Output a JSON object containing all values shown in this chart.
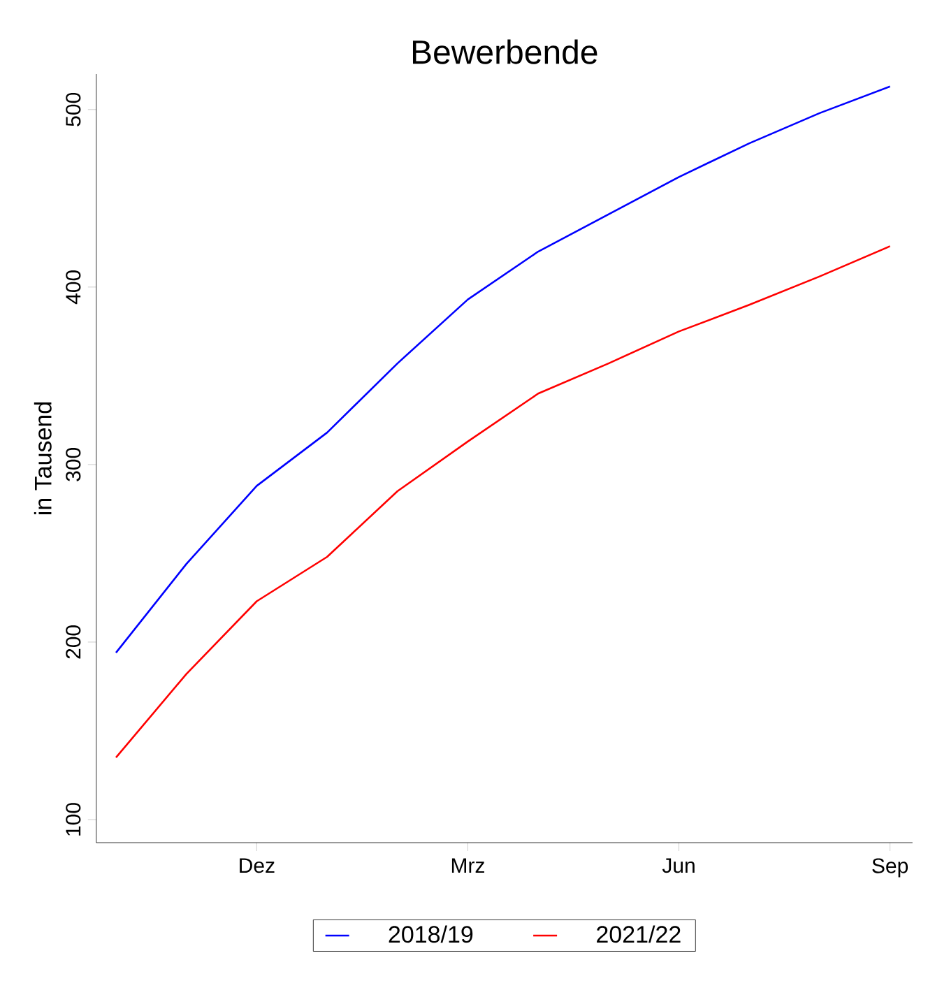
{
  "chart_data": {
    "type": "line",
    "title": "Bewerbende",
    "ylabel": "in Tausend",
    "categories": [
      null,
      null,
      "Dez",
      null,
      null,
      "Mrz",
      null,
      null,
      "Jun",
      null,
      null,
      "Sep"
    ],
    "series": [
      {
        "name": "2018/19",
        "color": "#0000ff",
        "values": [
          194,
          244,
          288,
          318,
          357,
          393,
          420,
          441,
          462,
          481,
          498,
          513
        ]
      },
      {
        "name": "2021/22",
        "color": "#ff0000",
        "values": [
          135,
          182,
          223,
          248,
          285,
          313,
          340,
          357,
          375,
          390,
          406,
          423
        ]
      }
    ],
    "ylim": [
      87,
      520
    ],
    "yticks": [
      100,
      200,
      300,
      400,
      500
    ],
    "grid": false,
    "legend": "bottom",
    "marker": "none",
    "line_style": "solid"
  }
}
